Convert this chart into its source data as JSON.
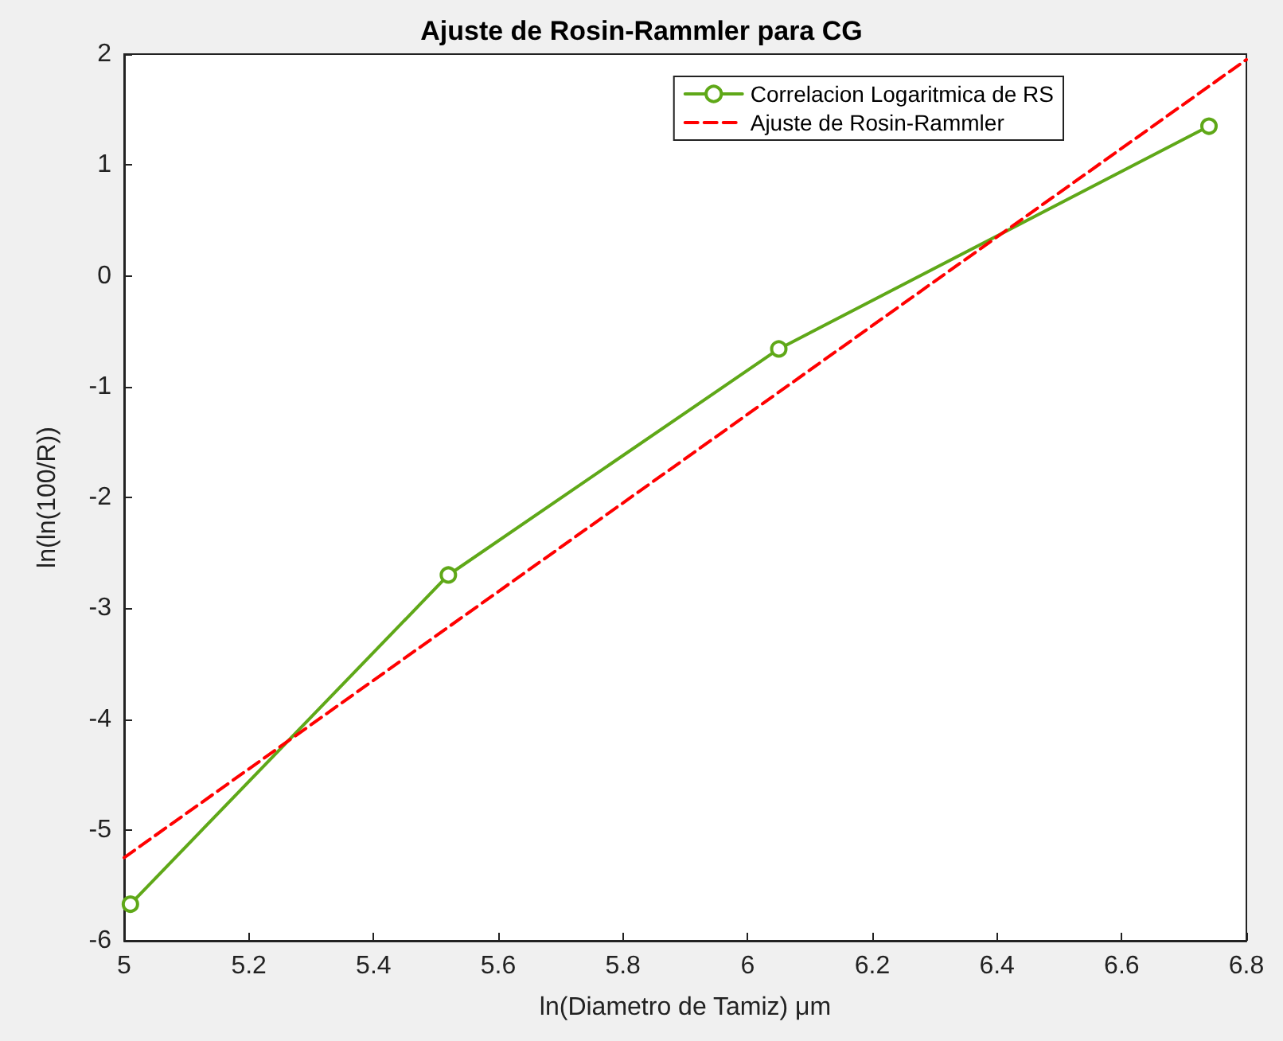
{
  "chart_data": {
    "type": "line",
    "title": "Ajuste de Rosin-Rammler para CG",
    "xlabel": "ln(Diametro de Tamiz) μm",
    "ylabel": "ln(ln(100/R))",
    "xlim": [
      5,
      6.8
    ],
    "xticks": [
      5,
      5.2,
      5.4,
      5.6,
      5.8,
      6,
      6.2,
      6.4,
      6.6,
      6.8
    ],
    "ylim": [
      -6,
      2
    ],
    "yticks": [
      -6,
      -5,
      -4,
      -3,
      -2,
      -1,
      0,
      1,
      2
    ],
    "grid": false,
    "legend": "top right",
    "series": [
      {
        "name": "Correlacion Logaritmica de RS",
        "color": "#5fa818",
        "x": [
          5.01,
          5.52,
          6.05,
          6.74
        ],
        "values": [
          -5.67,
          -2.7,
          -0.66,
          1.35
        ],
        "marker": "circle",
        "line_style": "solid"
      },
      {
        "name": "Ajuste de Rosin-Rammler",
        "color": "#ff0000",
        "x": [
          5,
          6.8
        ],
        "values": [
          -5.25,
          1.95
        ],
        "marker": "none",
        "line_style": "dashed"
      }
    ]
  }
}
